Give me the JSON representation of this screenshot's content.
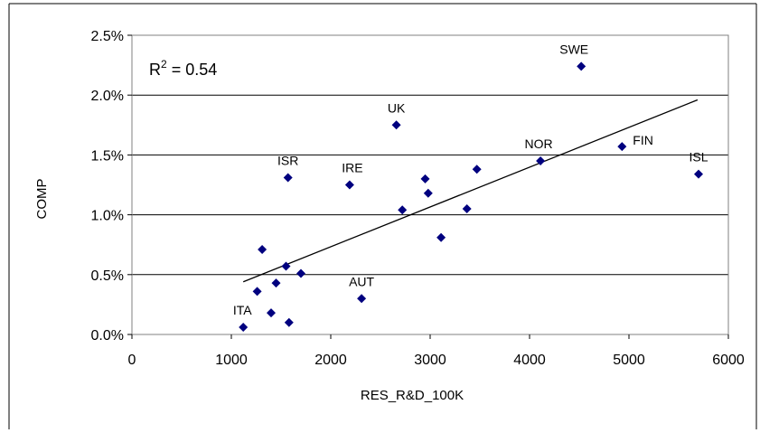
{
  "chart_data": {
    "type": "scatter",
    "title": "",
    "xlabel": "RES_R&D_100K",
    "ylabel": "COMP",
    "xlim": [
      0,
      6000
    ],
    "ylim": [
      0,
      0.025
    ],
    "x_ticks": [
      "0",
      "1000",
      "2000",
      "3000",
      "4000",
      "5000",
      "6000"
    ],
    "y_ticks": [
      "0.0%",
      "0.5%",
      "1.0%",
      "1.5%",
      "2.0%",
      "2.5%"
    ],
    "grid": "horizontal",
    "legend": "none",
    "annotation": {
      "r2_label": "R",
      "r2_sup": "2",
      "r2_value": " = 0.54"
    },
    "trendline": {
      "x": [
        1120,
        5690
      ],
      "y": [
        0.0044,
        0.0196
      ]
    },
    "marker_color": "#00007f",
    "points": [
      {
        "x": 1120,
        "y": 0.0006,
        "label": "ITA"
      },
      {
        "x": 1260,
        "y": 0.0036,
        "label": ""
      },
      {
        "x": 1310,
        "y": 0.0071,
        "label": ""
      },
      {
        "x": 1400,
        "y": 0.0018,
        "label": ""
      },
      {
        "x": 1450,
        "y": 0.0043,
        "label": ""
      },
      {
        "x": 1550,
        "y": 0.0057,
        "label": ""
      },
      {
        "x": 1570,
        "y": 0.0131,
        "label": "ISR"
      },
      {
        "x": 1580,
        "y": 0.001,
        "label": ""
      },
      {
        "x": 1700,
        "y": 0.0051,
        "label": ""
      },
      {
        "x": 2190,
        "y": 0.0125,
        "label": "IRE"
      },
      {
        "x": 2310,
        "y": 0.003,
        "label": "AUT"
      },
      {
        "x": 2660,
        "y": 0.0175,
        "label": "UK"
      },
      {
        "x": 2720,
        "y": 0.0104,
        "label": ""
      },
      {
        "x": 2950,
        "y": 0.013,
        "label": ""
      },
      {
        "x": 2980,
        "y": 0.0118,
        "label": ""
      },
      {
        "x": 3110,
        "y": 0.0081,
        "label": ""
      },
      {
        "x": 3370,
        "y": 0.0105,
        "label": ""
      },
      {
        "x": 3470,
        "y": 0.0138,
        "label": ""
      },
      {
        "x": 4110,
        "y": 0.0145,
        "label": "NOR"
      },
      {
        "x": 4520,
        "y": 0.0224,
        "label": "SWE"
      },
      {
        "x": 4930,
        "y": 0.0157,
        "label": "FIN"
      },
      {
        "x": 5700,
        "y": 0.0134,
        "label": "ISL"
      }
    ]
  }
}
